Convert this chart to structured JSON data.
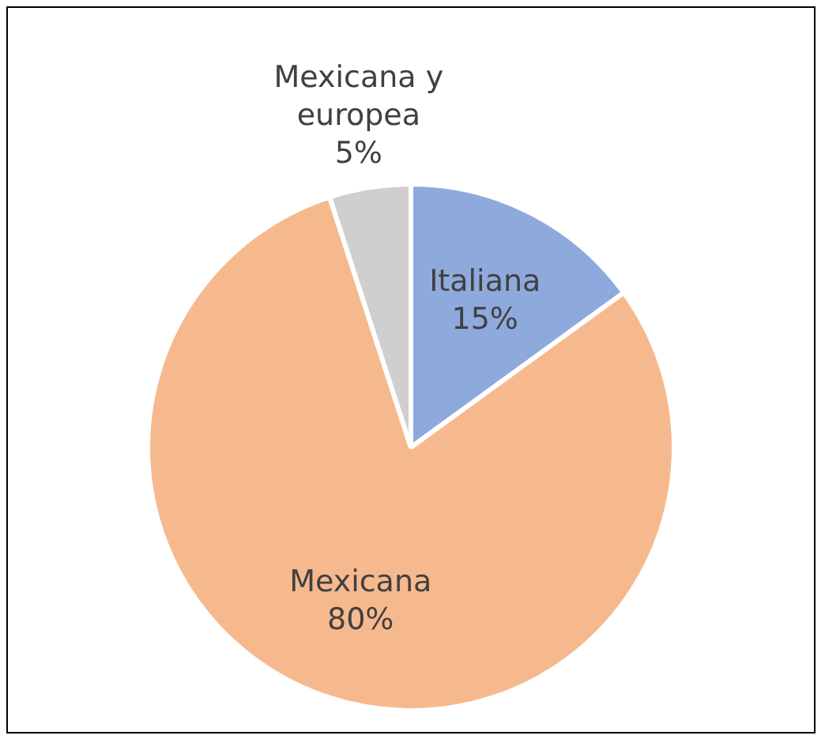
{
  "chart_data": {
    "type": "pie",
    "categories": [
      "Italiana",
      "Mexicana",
      "Mexicana y europea"
    ],
    "values": [
      15,
      80,
      5
    ],
    "value_labels": [
      "15%",
      "80%",
      "5%"
    ],
    "colors": [
      "#8eaadc",
      "#f6b98e",
      "#cfcfcf"
    ]
  }
}
